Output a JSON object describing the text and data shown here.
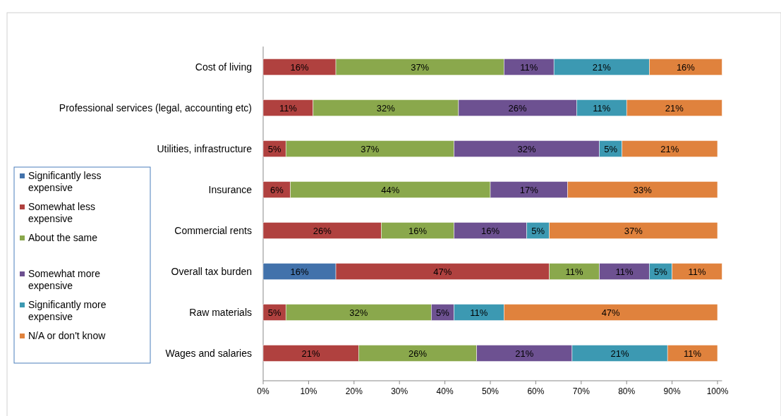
{
  "chart_data": {
    "type": "bar",
    "orientation": "horizontal",
    "stacked": true,
    "legend": "left",
    "categories": [
      "Cost of living",
      "Professional services (legal, accounting etc)",
      "Utilities, infrastructure",
      "Insurance",
      "Commercial rents",
      "Overall tax burden",
      "Raw materials",
      "Wages and salaries"
    ],
    "xlim": [
      0,
      101
    ],
    "xticks": [
      {
        "value": 0,
        "label": "0%"
      },
      {
        "value": 10,
        "label": "10%"
      },
      {
        "value": 20,
        "label": "20%"
      },
      {
        "value": 30,
        "label": "30%"
      },
      {
        "value": 40,
        "label": "40%"
      },
      {
        "value": 50,
        "label": "50%"
      },
      {
        "value": 60,
        "label": "60%"
      },
      {
        "value": 70,
        "label": "70%"
      },
      {
        "value": 80,
        "label": "80%"
      },
      {
        "value": 90,
        "label": "90%"
      },
      {
        "value": 100,
        "label": "100%"
      }
    ],
    "series": [
      {
        "name": "Significantly less expensive",
        "color": "#4272ab",
        "values": [
          null,
          null,
          null,
          null,
          null,
          16,
          null,
          null
        ],
        "value_labels": [
          null,
          null,
          null,
          null,
          null,
          "16%",
          null,
          null
        ]
      },
      {
        "name": "Somewhat less expensive",
        "color": "#b0413f",
        "values": [
          16,
          11,
          5,
          6,
          26,
          47,
          5,
          21
        ],
        "value_labels": [
          "16%",
          "11%",
          "5%",
          "6%",
          "26%",
          "47%",
          "5%",
          "21%"
        ]
      },
      {
        "name": "About the same",
        "color": "#8aa84c",
        "values": [
          37,
          32,
          37,
          44,
          16,
          11,
          32,
          26
        ],
        "value_labels": [
          "37%",
          "32%",
          "37%",
          "44%",
          "16%",
          "11%",
          "32%",
          "26%"
        ]
      },
      {
        "name": "Somewhat more expensive",
        "color": "#6d5191",
        "values": [
          11,
          26,
          32,
          17,
          16,
          11,
          5,
          21
        ],
        "value_labels": [
          "11%",
          "26%",
          "32%",
          "17%",
          "16%",
          "11%",
          "5%",
          "21%"
        ]
      },
      {
        "name": "Significantly more expensive",
        "color": "#3c99b2",
        "values": [
          21,
          11,
          5,
          null,
          5,
          5,
          11,
          21
        ],
        "value_labels": [
          "21%",
          "11%",
          "5%",
          null,
          "5%",
          "5%",
          "11%",
          "21%"
        ]
      },
      {
        "name": "N/A or don't know",
        "color": "#e0823d",
        "values": [
          16,
          21,
          21,
          33,
          37,
          11,
          47,
          11
        ],
        "value_labels": [
          "16%",
          "21%",
          "21%",
          "33%",
          "37%",
          "11%",
          "47%",
          "11%"
        ]
      }
    ]
  }
}
